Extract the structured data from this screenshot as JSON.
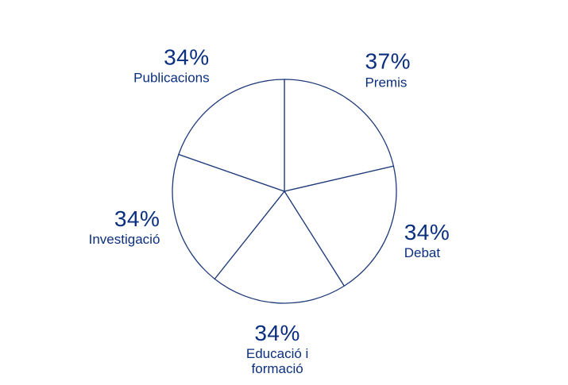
{
  "chart_data": {
    "type": "pie",
    "categories": [
      "Premis",
      "Debat",
      "Educació i formació",
      "Investigació",
      "Publicacions"
    ],
    "values": [
      37,
      34,
      34,
      34,
      34
    ],
    "value_labels": [
      "37%",
      "34%",
      "34%",
      "34%",
      "34%"
    ],
    "color": "#1f3a7a"
  }
}
